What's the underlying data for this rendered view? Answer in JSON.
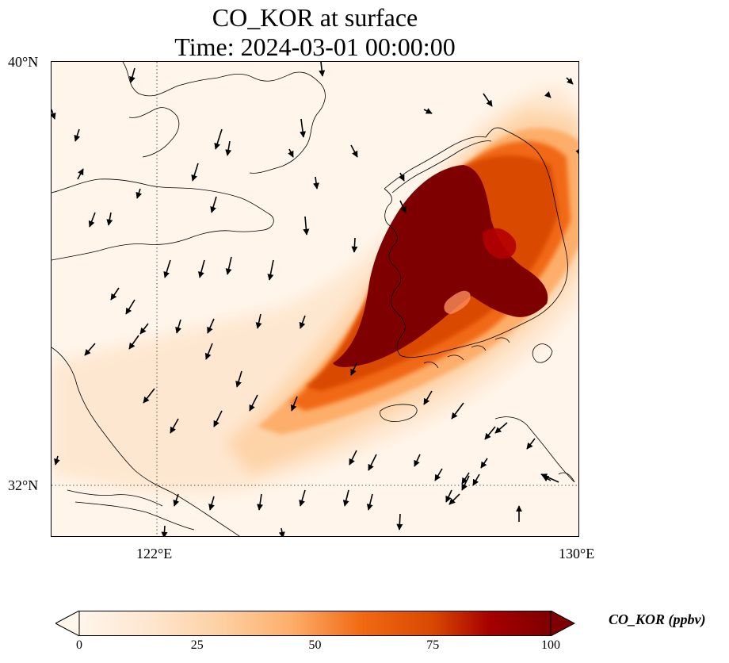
{
  "title": {
    "line1": "CO_KOR at surface",
    "line2": "Time: 2024-03-01 00:00:00"
  },
  "map": {
    "extent": {
      "lon_min": 120.0,
      "lon_max": 130.0,
      "lat_min": 31.0,
      "lat_max": 40.0
    },
    "gridlines": {
      "lons": [
        122
      ],
      "lats": [
        32
      ],
      "style": "dotted"
    },
    "lat_labels": [
      {
        "value": 40,
        "text": "40°N"
      },
      {
        "value": 32,
        "text": "32°N"
      }
    ],
    "lon_labels": [
      {
        "value": 122,
        "text": "122°E"
      },
      {
        "value": 130,
        "text": "130°E"
      }
    ],
    "features": [
      "coastlines",
      "wind-vectors",
      "co-concentration-field"
    ]
  },
  "colorbar": {
    "label": "CO_KOR (ppbv)",
    "min": 0,
    "max": 100,
    "ticks": [
      {
        "value": 0,
        "text": "0"
      },
      {
        "value": 25,
        "text": "25"
      },
      {
        "value": 50,
        "text": "50"
      },
      {
        "value": 75,
        "text": "75"
      },
      {
        "value": 100,
        "text": "100"
      }
    ],
    "extend": "both",
    "colormap": "OrRd",
    "colors": [
      "#fff7ec",
      "#fee8c8",
      "#fdd49e",
      "#fdbb84",
      "#fc8d59",
      "#ef6548",
      "#d7301f",
      "#b30000",
      "#7f0000"
    ]
  }
}
